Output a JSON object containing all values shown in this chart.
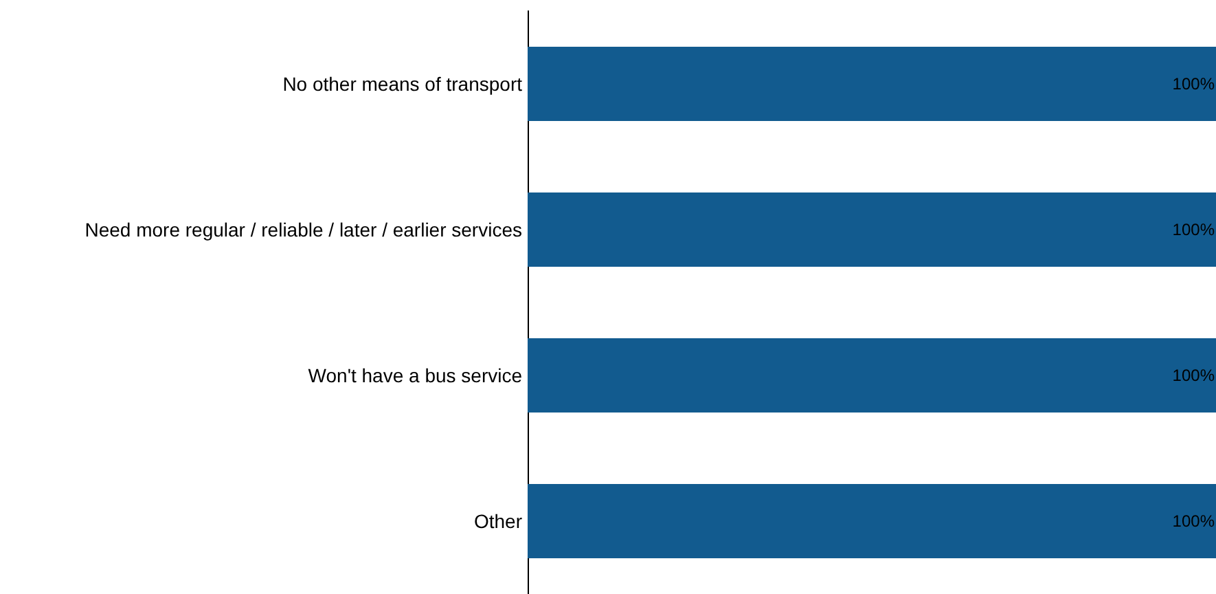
{
  "chart_data": {
    "type": "bar",
    "orientation": "horizontal",
    "categories": [
      "No other means of transport",
      "Need more regular / reliable / later / earlier services",
      "Won't have a bus service",
      "Other"
    ],
    "values": [
      100,
      100,
      100,
      100
    ],
    "value_labels": [
      "100%",
      "100%",
      "100%",
      "100%"
    ],
    "color": "#125b8f",
    "grid": false
  }
}
